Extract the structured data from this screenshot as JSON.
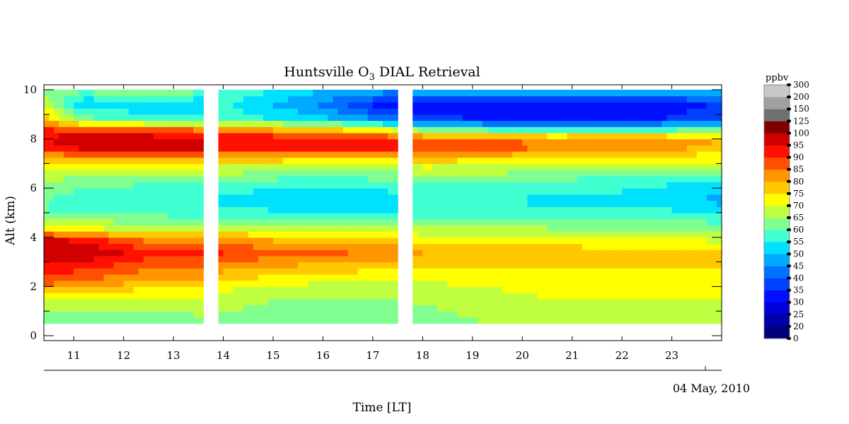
{
  "chart_data": {
    "type": "heatmap",
    "title_prefix": "Huntsville O",
    "title_subscript": "3",
    "title_suffix": " DIAL Retrieval",
    "xlabel": "Time [LT]",
    "ylabel": "Alt (km)",
    "date_label": "04 May, 2010",
    "colorbar_title": "ppbv",
    "xlim": [
      10.4,
      24.0
    ],
    "ylim": [
      -0.2,
      10.2
    ],
    "x_ticks": [
      11,
      12,
      13,
      14,
      15,
      16,
      17,
      18,
      19,
      20,
      21,
      22,
      23
    ],
    "y_ticks": [
      0,
      2,
      4,
      6,
      8,
      10
    ],
    "data_altitude_range_km": [
      0.5,
      10.0
    ],
    "data_segments_hours": [
      [
        10.4,
        13.6
      ],
      [
        13.9,
        17.5
      ],
      [
        17.8,
        24.0
      ]
    ],
    "colorbar_levels": [
      "0",
      "20",
      "25",
      "30",
      "35",
      "40",
      "45",
      "50",
      "55",
      "60",
      "65",
      "70",
      "75",
      "80",
      "85",
      "90",
      "95",
      "100",
      "125",
      "150",
      "200",
      "300"
    ],
    "colorbar_colors": [
      "#00007f",
      "#0000a8",
      "#0000d8",
      "#0010ff",
      "#0040ff",
      "#0070ff",
      "#00a8ff",
      "#00e0ff",
      "#40ffd0",
      "#80ff90",
      "#c0ff40",
      "#ffff00",
      "#ffc800",
      "#ff9600",
      "#ff5000",
      "#ff1000",
      "#d00000",
      "#800000",
      "#707070",
      "#a0a0a0",
      "#c8c8c8",
      "#eeeeee"
    ],
    "profile_keyframes": [
      {
        "time": 10.4,
        "profile": [
          [
            0.5,
            62
          ],
          [
            1.5,
            68
          ],
          [
            2.2,
            88
          ],
          [
            2.8,
            92
          ],
          [
            3.4,
            98
          ],
          [
            4.0,
            96
          ],
          [
            4.3,
            72
          ],
          [
            5.0,
            60
          ],
          [
            6.0,
            62
          ],
          [
            7.0,
            72
          ],
          [
            7.6,
            90
          ],
          [
            8.0,
            96
          ],
          [
            8.4,
            90
          ],
          [
            8.8,
            78
          ],
          [
            9.4,
            70
          ],
          [
            10.0,
            62
          ]
        ]
      },
      {
        "time": 11.2,
        "profile": [
          [
            0.5,
            62
          ],
          [
            1.5,
            68
          ],
          [
            2.2,
            84
          ],
          [
            2.8,
            92
          ],
          [
            3.4,
            100
          ],
          [
            3.9,
            94
          ],
          [
            4.3,
            72
          ],
          [
            5.0,
            58
          ],
          [
            5.5,
            56
          ],
          [
            6.2,
            62
          ],
          [
            7.0,
            72
          ],
          [
            7.6,
            95
          ],
          [
            8.0,
            100
          ],
          [
            8.4,
            88
          ],
          [
            8.8,
            62
          ],
          [
            9.4,
            50
          ],
          [
            10.0,
            62
          ]
        ]
      },
      {
        "time": 12.5,
        "profile": [
          [
            0.5,
            60
          ],
          [
            1.5,
            68
          ],
          [
            2.2,
            80
          ],
          [
            2.8,
            86
          ],
          [
            3.4,
            92
          ],
          [
            4.0,
            82
          ],
          [
            4.3,
            70
          ],
          [
            5.0,
            58
          ],
          [
            5.5,
            56
          ],
          [
            6.2,
            60
          ],
          [
            7.0,
            72
          ],
          [
            7.6,
            96
          ],
          [
            8.0,
            100
          ],
          [
            8.4,
            85
          ],
          [
            8.8,
            58
          ],
          [
            9.4,
            52
          ],
          [
            10.0,
            66
          ]
        ]
      },
      {
        "time": 13.6,
        "profile": [
          [
            0.5,
            64
          ],
          [
            1.5,
            68
          ],
          [
            2.2,
            80
          ],
          [
            2.8,
            86
          ],
          [
            3.4,
            93
          ],
          [
            4.0,
            82
          ],
          [
            4.3,
            68
          ],
          [
            5.0,
            58
          ],
          [
            5.5,
            56
          ],
          [
            6.2,
            60
          ],
          [
            7.0,
            72
          ],
          [
            7.6,
            96
          ],
          [
            8.0,
            96
          ],
          [
            8.4,
            84
          ],
          [
            8.8,
            58
          ],
          [
            9.4,
            50
          ],
          [
            10.0,
            62
          ]
        ]
      },
      {
        "time": 14.0,
        "profile": [
          [
            0.5,
            64
          ],
          [
            1.5,
            66
          ],
          [
            2.2,
            74
          ],
          [
            2.8,
            82
          ],
          [
            3.4,
            90
          ],
          [
            4.0,
            80
          ],
          [
            4.3,
            70
          ],
          [
            5.0,
            57
          ],
          [
            5.5,
            53
          ],
          [
            6.2,
            58
          ],
          [
            7.0,
            72
          ],
          [
            7.6,
            92
          ],
          [
            8.0,
            96
          ],
          [
            8.4,
            82
          ],
          [
            8.8,
            58
          ],
          [
            9.4,
            56
          ],
          [
            10.0,
            60
          ]
        ]
      },
      {
        "time": 16.0,
        "profile": [
          [
            0.5,
            64
          ],
          [
            1.5,
            64
          ],
          [
            2.2,
            70
          ],
          [
            2.8,
            78
          ],
          [
            3.4,
            86
          ],
          [
            4.0,
            76
          ],
          [
            4.3,
            68
          ],
          [
            5.0,
            55
          ],
          [
            5.5,
            50
          ],
          [
            6.2,
            56
          ],
          [
            7.0,
            70
          ],
          [
            7.6,
            90
          ],
          [
            8.0,
            94
          ],
          [
            8.4,
            76
          ],
          [
            8.8,
            52
          ],
          [
            9.4,
            44
          ],
          [
            10.0,
            50
          ]
        ]
      },
      {
        "time": 17.5,
        "profile": [
          [
            0.5,
            64
          ],
          [
            1.5,
            64
          ],
          [
            2.2,
            70
          ],
          [
            2.8,
            76
          ],
          [
            3.4,
            84
          ],
          [
            4.0,
            75
          ],
          [
            4.3,
            67
          ],
          [
            5.0,
            55
          ],
          [
            5.5,
            52
          ],
          [
            6.2,
            58
          ],
          [
            7.0,
            70
          ],
          [
            7.6,
            90
          ],
          [
            8.0,
            92
          ],
          [
            8.4,
            68
          ],
          [
            8.8,
            42
          ],
          [
            9.4,
            30
          ],
          [
            10.0,
            48
          ]
        ]
      },
      {
        "time": 18.0,
        "profile": [
          [
            0.5,
            62
          ],
          [
            1.5,
            66
          ],
          [
            2.2,
            70
          ],
          [
            2.8,
            76
          ],
          [
            3.4,
            80
          ],
          [
            4.0,
            72
          ],
          [
            4.3,
            66
          ],
          [
            5.0,
            58
          ],
          [
            5.5,
            56
          ],
          [
            6.2,
            60
          ],
          [
            7.0,
            72
          ],
          [
            7.6,
            90
          ],
          [
            8.0,
            88
          ],
          [
            8.4,
            62
          ],
          [
            8.8,
            38
          ],
          [
            9.4,
            32
          ],
          [
            10.0,
            50
          ]
        ]
      },
      {
        "time": 20.5,
        "profile": [
          [
            0.5,
            68
          ],
          [
            1.5,
            70
          ],
          [
            2.2,
            72
          ],
          [
            2.8,
            76
          ],
          [
            3.4,
            78
          ],
          [
            4.0,
            72
          ],
          [
            4.3,
            66
          ],
          [
            5.0,
            57
          ],
          [
            5.5,
            54
          ],
          [
            6.2,
            58
          ],
          [
            7.0,
            70
          ],
          [
            7.6,
            84
          ],
          [
            8.0,
            84
          ],
          [
            8.4,
            55
          ],
          [
            8.8,
            30
          ],
          [
            9.4,
            30
          ],
          [
            10.0,
            50
          ]
        ]
      },
      {
        "time": 22.5,
        "profile": [
          [
            0.5,
            70
          ],
          [
            1.5,
            70
          ],
          [
            2.2,
            72
          ],
          [
            2.8,
            76
          ],
          [
            3.4,
            76
          ],
          [
            4.0,
            70
          ],
          [
            4.3,
            64
          ],
          [
            5.0,
            57
          ],
          [
            5.5,
            53
          ],
          [
            6.2,
            56
          ],
          [
            7.0,
            68
          ],
          [
            7.6,
            82
          ],
          [
            8.0,
            84
          ],
          [
            8.4,
            56
          ],
          [
            8.8,
            34
          ],
          [
            9.4,
            30
          ],
          [
            10.0,
            50
          ]
        ]
      },
      {
        "time": 24.0,
        "profile": [
          [
            0.5,
            68
          ],
          [
            1.5,
            70
          ],
          [
            2.2,
            72
          ],
          [
            2.8,
            76
          ],
          [
            3.4,
            76
          ],
          [
            4.0,
            68
          ],
          [
            4.3,
            64
          ],
          [
            5.0,
            55
          ],
          [
            5.5,
            48
          ],
          [
            6.2,
            54
          ],
          [
            7.0,
            68
          ],
          [
            7.6,
            78
          ],
          [
            8.0,
            80
          ],
          [
            8.4,
            62
          ],
          [
            8.8,
            40
          ],
          [
            9.4,
            36
          ],
          [
            10.0,
            52
          ]
        ]
      }
    ]
  }
}
